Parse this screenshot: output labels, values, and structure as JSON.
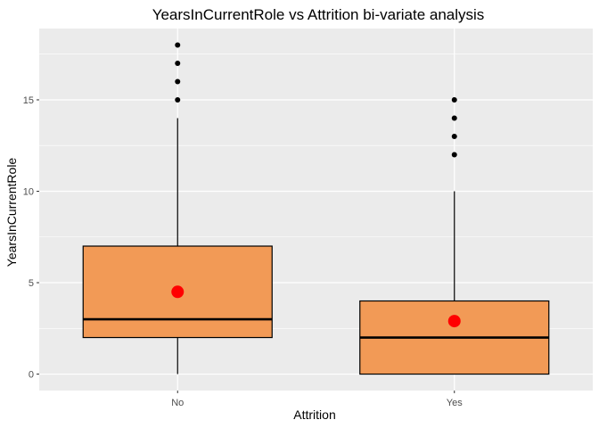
{
  "chart_data": {
    "type": "boxplot",
    "title": "YearsInCurrentRole vs Attrition bi-variate analysis",
    "xlabel": "Attrition",
    "ylabel": "YearsInCurrentRole",
    "categories": [
      "No",
      "Yes"
    ],
    "ylim": [
      -0.9,
      18.9
    ],
    "yticks": [
      0,
      5,
      10,
      15
    ],
    "grid": true,
    "colors": {
      "panel": "#EBEBEB",
      "grid_major": "#FFFFFF",
      "box_fill": "#F29A56",
      "box_stroke": "#000000",
      "mean_point": "#FF0000",
      "outlier": "#000000"
    },
    "boxes": [
      {
        "category": "No",
        "whisker_low": 0,
        "q1": 2,
        "median": 3,
        "q3": 7,
        "whisker_high": 14,
        "mean": 4.5,
        "outliers": [
          15,
          16,
          17,
          18
        ]
      },
      {
        "category": "Yes",
        "whisker_low": 0,
        "q1": 0,
        "median": 2,
        "q3": 4,
        "whisker_high": 10,
        "mean": 2.9,
        "outliers": [
          12,
          13,
          14,
          15
        ]
      }
    ]
  }
}
